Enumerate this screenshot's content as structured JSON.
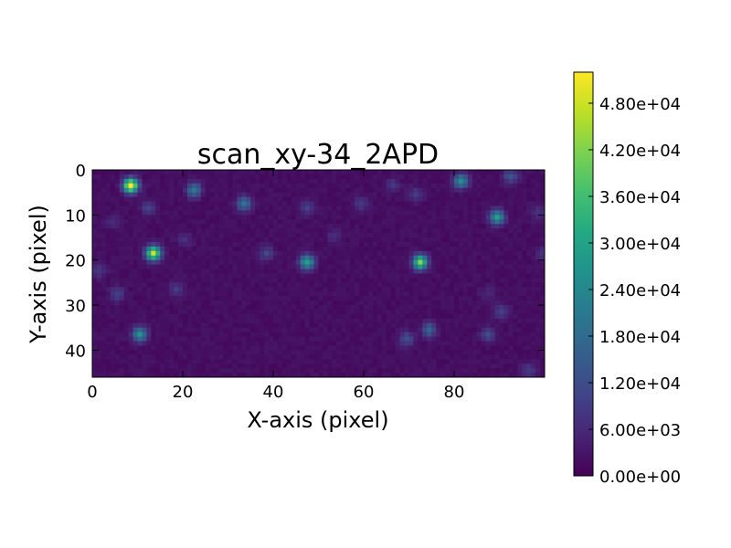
{
  "chart_data": {
    "type": "heatmap",
    "title": "scan_xy-34_2APD",
    "xlabel": "X-axis (pixel)",
    "ylabel": "Y-axis (pixel)",
    "grid_shape": [
      46,
      100
    ],
    "xlim": [
      0,
      100
    ],
    "ylim": [
      46,
      0
    ],
    "colormap": "viridis",
    "x_ticks": [
      "0",
      "20",
      "40",
      "60",
      "80"
    ],
    "y_ticks": [
      "0",
      "10",
      "20",
      "30",
      "40"
    ],
    "colorbar": {
      "range": [
        0,
        52000
      ],
      "tick_values": [
        0,
        6000,
        12000,
        18000,
        24000,
        30000,
        36000,
        42000,
        48000
      ],
      "tick_labels": [
        "0.00e+00",
        "6.00e+03",
        "1.20e+04",
        "1.80e+04",
        "2.40e+04",
        "3.00e+04",
        "3.60e+04",
        "4.20e+04",
        "4.80e+04"
      ]
    },
    "background_level": 2000,
    "spots": [
      {
        "x": 8,
        "y": 3,
        "peak": 52000
      },
      {
        "x": 13,
        "y": 18,
        "peak": 46000
      },
      {
        "x": 72,
        "y": 20,
        "peak": 40000
      },
      {
        "x": 47,
        "y": 20,
        "peak": 28000
      },
      {
        "x": 89,
        "y": 10,
        "peak": 27000
      },
      {
        "x": 81,
        "y": 2,
        "peak": 24000
      },
      {
        "x": 10,
        "y": 36,
        "peak": 24000
      },
      {
        "x": 22,
        "y": 4,
        "peak": 20000
      },
      {
        "x": 33,
        "y": 7,
        "peak": 18000
      },
      {
        "x": 74,
        "y": 35,
        "peak": 15000
      },
      {
        "x": 92,
        "y": 1,
        "peak": 12000
      },
      {
        "x": 69,
        "y": 37,
        "peak": 11000
      },
      {
        "x": 87,
        "y": 36,
        "peak": 10000
      },
      {
        "x": 12,
        "y": 8,
        "peak": 9000
      },
      {
        "x": 38,
        "y": 18,
        "peak": 9000
      },
      {
        "x": 47,
        "y": 8,
        "peak": 8000
      },
      {
        "x": 90,
        "y": 31,
        "peak": 8000
      },
      {
        "x": 5,
        "y": 27,
        "peak": 8000
      },
      {
        "x": 1,
        "y": 22,
        "peak": 7000
      },
      {
        "x": 18,
        "y": 26,
        "peak": 7000
      },
      {
        "x": 59,
        "y": 7,
        "peak": 7000
      },
      {
        "x": 71,
        "y": 5,
        "peak": 7000
      },
      {
        "x": 96,
        "y": 44,
        "peak": 7000
      },
      {
        "x": 99,
        "y": 18,
        "peak": 6000
      },
      {
        "x": 66,
        "y": 3,
        "peak": 6000
      },
      {
        "x": 98,
        "y": 9,
        "peak": 5000
      },
      {
        "x": 20,
        "y": 15,
        "peak": 5000
      },
      {
        "x": 53,
        "y": 14,
        "peak": 5000
      },
      {
        "x": 87,
        "y": 27,
        "peak": 4000
      },
      {
        "x": 4,
        "y": 11,
        "peak": 4000
      }
    ]
  }
}
